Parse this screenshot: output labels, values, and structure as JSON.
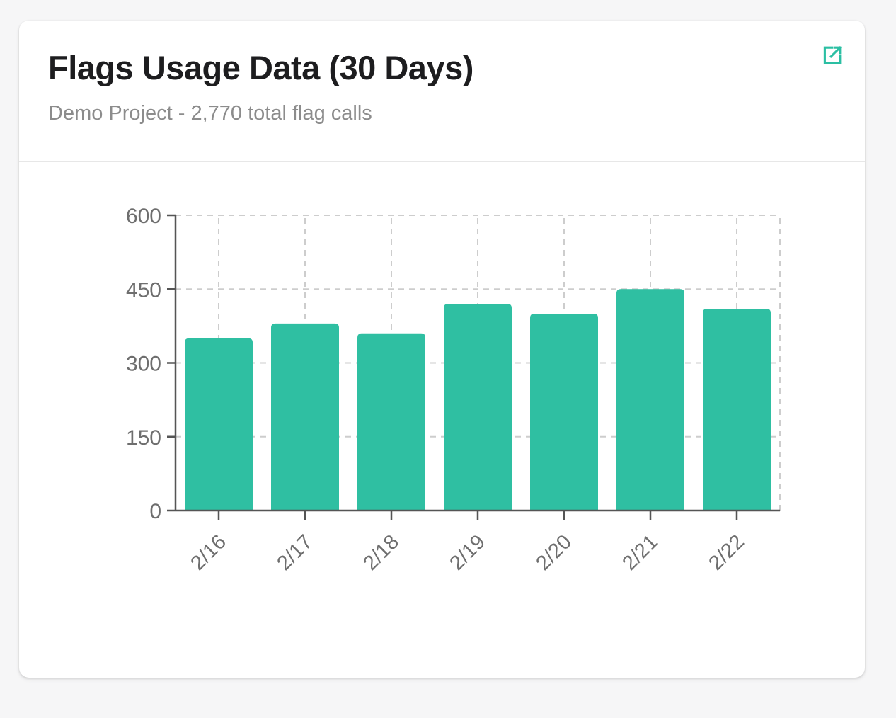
{
  "card": {
    "title": "Flags Usage Data (30 Days)",
    "subtitle": "Demo Project - 2,770 total flag calls",
    "expand_action": "open-external"
  },
  "colors": {
    "accent": "#2bbfa3",
    "bar": "#2fbfa2",
    "axis": "#555555",
    "grid": "#cdcdcd",
    "tick_label": "#6e6e6e",
    "title_text": "#1d1d1f",
    "subtitle_text": "#8c8c8c",
    "card_bg": "#ffffff",
    "page_bg": "#f6f6f7",
    "divider": "#e7e7e7"
  },
  "chart_data": {
    "type": "bar",
    "categories": [
      "2/16",
      "2/17",
      "2/18",
      "2/19",
      "2/20",
      "2/21",
      "2/22"
    ],
    "values": [
      350,
      380,
      360,
      420,
      400,
      450,
      410
    ],
    "total": 2770,
    "title": "Flags Usage Data (30 Days)",
    "xlabel": "",
    "ylabel": "",
    "ylim": [
      0,
      600
    ],
    "yticks": [
      0,
      150,
      300,
      450,
      600
    ],
    "legend": "none",
    "grid": "dashed",
    "x_tick_rotation": -45,
    "bar_color": "#2fbfa2"
  }
}
